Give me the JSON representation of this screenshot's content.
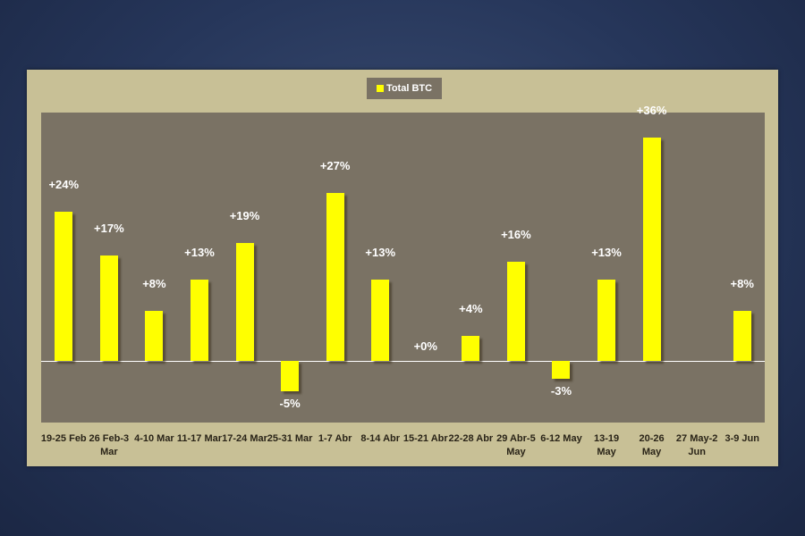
{
  "chart_data": {
    "type": "bar",
    "categories": [
      "19-25 Feb",
      "26 Feb-3 Mar",
      "4-10 Mar",
      "11-17 Mar",
      "17-24 Mar",
      "25-31 Mar",
      "1-7 Abr",
      "8-14 Abr",
      "15-21 Abr",
      "22-28 Abr",
      "29 Abr-5 May",
      "6-12 May",
      "13-19 May",
      "20-26 May",
      "27 May-2 Jun",
      "3-9 Jun"
    ],
    "series": [
      {
        "name": "Total BTC",
        "color": "#ffff00",
        "values": [
          24,
          17,
          8,
          13,
          19,
          -5,
          27,
          13,
          0,
          4,
          16,
          -3,
          13,
          36,
          null,
          8
        ],
        "value_labels": [
          "+24%",
          "+17%",
          "+8%",
          "+13%",
          "+19%",
          "-5%",
          "+27%",
          "+13%",
          "+0%",
          "+4%",
          "+16%",
          "-3%",
          "+13%",
          "+36%",
          null,
          "+8%"
        ]
      }
    ],
    "ylim": [
      -10,
      40
    ],
    "legend": "top"
  }
}
